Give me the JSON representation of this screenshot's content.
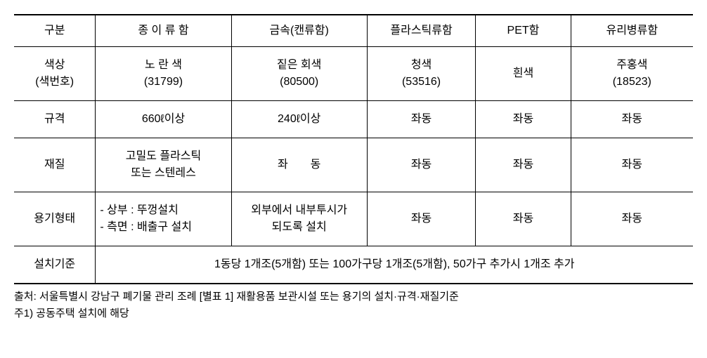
{
  "table": {
    "columns": [
      "구분",
      "종 이 류 함",
      "금속(캔류함)",
      "플라스틱류함",
      "PET함",
      "유리병류함"
    ],
    "rows": [
      {
        "label_line1": "색상",
        "label_line2": "(색번호)",
        "c1_line1": "노 란 색",
        "c1_line2": "(31799)",
        "c2_line1": "짙은 회색",
        "c2_line2": "(80500)",
        "c3_line1": "청색",
        "c3_line2": "(53516)",
        "c4": "흰색",
        "c5_line1": "주홍색",
        "c5_line2": "(18523)"
      },
      {
        "label": "규격",
        "c1": "660ℓ이상",
        "c2": "240ℓ이상",
        "c3": "좌동",
        "c4": "좌동",
        "c5": "좌동"
      },
      {
        "label": "재질",
        "c1_line1": "고밀도 플라스틱",
        "c1_line2": "또는 스텐레스",
        "c2": "좌  동",
        "c3": "좌동",
        "c4": "좌동",
        "c5": "좌동"
      },
      {
        "label": "용기형태",
        "c1_line1": "- 상부 : 뚜껑설치",
        "c1_line2": "- 측면 : 배출구 설치",
        "c2_line1": "외부에서 내부투시가",
        "c2_line2": "되도록 설치",
        "c3": "좌동",
        "c4": "좌동",
        "c5": "좌동"
      },
      {
        "label": "설치기준",
        "merged": "1동당 1개조(5개함) 또는 100가구당 1개조(5개함), 50가구 추가시 1개조 추가"
      }
    ]
  },
  "footnotes": {
    "line1": "출처: 서울특별시 강남구 폐기물 관리 조례 [별표 1] 재활용품 보관시설 또는 용기의 설치·규격·재질기준",
    "line2": "주1) 공동주택 설치에 해당"
  },
  "colors": {
    "text": "#000000",
    "border": "#000000",
    "background": "#ffffff"
  },
  "column_widths_pct": [
    12,
    20,
    20,
    16,
    14,
    18
  ],
  "fonts": {
    "body_size_pt": 16,
    "footnote_size_pt": 15,
    "family": "Malgun Gothic"
  }
}
